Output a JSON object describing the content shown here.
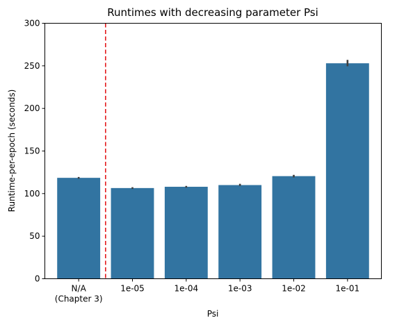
{
  "chart_data": {
    "type": "bar",
    "title": "Runtimes with decreasing parameter Psi",
    "xlabel": "Psi",
    "ylabel": "Runtime-per-epoch (seconds)",
    "ylim": [
      0,
      300
    ],
    "yticks": [
      0,
      50,
      100,
      150,
      200,
      250,
      300
    ],
    "categories": [
      [
        "N/A",
        "(Chapter 3)"
      ],
      [
        "1e-05"
      ],
      [
        "1e-04"
      ],
      [
        "1e-03"
      ],
      [
        "1e-02"
      ],
      [
        "1e-01"
      ]
    ],
    "values": [
      118.5,
      106.5,
      108.0,
      110.0,
      120.5,
      253.0
    ],
    "error_bars": [
      [
        117.5,
        119.5
      ],
      [
        105.5,
        107.5
      ],
      [
        107.0,
        109.0
      ],
      [
        109.0,
        111.5
      ],
      [
        119.0,
        122.0
      ],
      [
        249.5,
        257.0
      ]
    ],
    "reference_line": {
      "after_category_index": 0,
      "style": "dashed",
      "color": "#e31a1c"
    },
    "bar_color": "#3274a1",
    "error_color": "#3f3f3f",
    "grid": false,
    "legend": "none"
  }
}
